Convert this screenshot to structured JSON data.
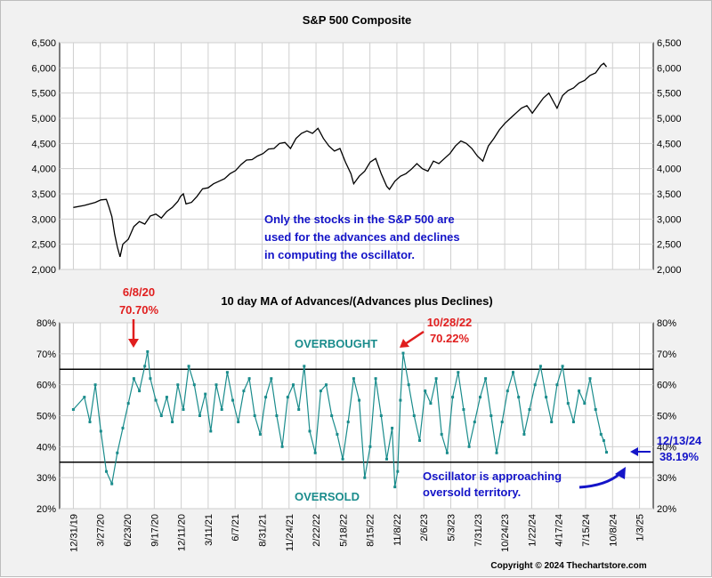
{
  "chart_data": [
    {
      "type": "line",
      "title": "S&P 500 Composite",
      "ylim": [
        2000,
        6500
      ],
      "y_ticks": [
        "2,000",
        "2,500",
        "3,000",
        "3,500",
        "4,000",
        "4,500",
        "5,000",
        "5,500",
        "6,000",
        "6,500"
      ],
      "y_tick_values": [
        2000,
        2500,
        3000,
        3500,
        4000,
        4500,
        5000,
        5500,
        6000,
        6500
      ],
      "grid": true,
      "series": [
        {
          "values": [
            [
              0,
              3230
            ],
            [
              4,
              3270
            ],
            [
              8,
              3330
            ],
            [
              10,
              3380
            ],
            [
              12,
              3390
            ],
            [
              13,
              3230
            ],
            [
              14,
              3050
            ],
            [
              15,
              2700
            ],
            [
              16,
              2450
            ],
            [
              17,
              2250
            ],
            [
              18,
              2500
            ],
            [
              20,
              2600
            ],
            [
              22,
              2850
            ],
            [
              24,
              2950
            ],
            [
              26,
              2900
            ],
            [
              28,
              3060
            ],
            [
              30,
              3100
            ],
            [
              32,
              3020
            ],
            [
              34,
              3150
            ],
            [
              36,
              3230
            ],
            [
              38,
              3350
            ],
            [
              39,
              3450
            ],
            [
              40,
              3500
            ],
            [
              41,
              3300
            ],
            [
              43,
              3330
            ],
            [
              45,
              3450
            ],
            [
              47,
              3600
            ],
            [
              49,
              3620
            ],
            [
              51,
              3700
            ],
            [
              53,
              3750
            ],
            [
              55,
              3800
            ],
            [
              57,
              3900
            ],
            [
              59,
              3960
            ],
            [
              61,
              4080
            ],
            [
              63,
              4170
            ],
            [
              65,
              4180
            ],
            [
              67,
              4250
            ],
            [
              69,
              4300
            ],
            [
              71,
              4390
            ],
            [
              73,
              4400
            ],
            [
              75,
              4500
            ],
            [
              77,
              4520
            ],
            [
              79,
              4400
            ],
            [
              81,
              4600
            ],
            [
              83,
              4700
            ],
            [
              85,
              4750
            ],
            [
              87,
              4700
            ],
            [
              89,
              4800
            ],
            [
              91,
              4600
            ],
            [
              93,
              4450
            ],
            [
              95,
              4350
            ],
            [
              97,
              4400
            ],
            [
              99,
              4130
            ],
            [
              101,
              3900
            ],
            [
              102,
              3700
            ],
            [
              104,
              3850
            ],
            [
              106,
              3950
            ],
            [
              108,
              4130
            ],
            [
              110,
              4200
            ],
            [
              112,
              3900
            ],
            [
              114,
              3650
            ],
            [
              115,
              3590
            ],
            [
              117,
              3750
            ],
            [
              119,
              3850
            ],
            [
              121,
              3900
            ],
            [
              123,
              3990
            ],
            [
              125,
              4100
            ],
            [
              127,
              4000
            ],
            [
              129,
              3950
            ],
            [
              131,
              4150
            ],
            [
              133,
              4100
            ],
            [
              135,
              4200
            ],
            [
              137,
              4300
            ],
            [
              139,
              4450
            ],
            [
              141,
              4550
            ],
            [
              143,
              4500
            ],
            [
              145,
              4400
            ],
            [
              147,
              4250
            ],
            [
              149,
              4150
            ],
            [
              151,
              4450
            ],
            [
              153,
              4600
            ],
            [
              155,
              4770
            ],
            [
              157,
              4900
            ],
            [
              159,
              5000
            ],
            [
              161,
              5100
            ],
            [
              163,
              5200
            ],
            [
              165,
              5250
            ],
            [
              167,
              5100
            ],
            [
              169,
              5250
            ],
            [
              171,
              5400
            ],
            [
              173,
              5500
            ],
            [
              175,
              5300
            ],
            [
              176,
              5200
            ],
            [
              178,
              5450
            ],
            [
              180,
              5550
            ],
            [
              182,
              5600
            ],
            [
              184,
              5700
            ],
            [
              186,
              5750
            ],
            [
              188,
              5850
            ],
            [
              190,
              5900
            ],
            [
              192,
              6050
            ],
            [
              193,
              6090
            ],
            [
              194,
              6020
            ]
          ]
        }
      ]
    },
    {
      "type": "line",
      "title": "10 day MA of Advances/(Advances plus Declines)",
      "ylim": [
        20,
        80
      ],
      "y_ticks": [
        "20%",
        "30%",
        "40%",
        "50%",
        "60%",
        "70%",
        "80%"
      ],
      "y_tick_values": [
        20,
        30,
        40,
        50,
        60,
        70,
        80
      ],
      "grid": true,
      "x_tick_labels": [
        "12/31/19",
        "3/27/20",
        "6/23/20",
        "9/17/20",
        "12/11/20",
        "3/11/21",
        "6/7/21",
        "8/31/21",
        "11/24/21",
        "2/22/22",
        "5/18/22",
        "8/15/22",
        "11/8/22",
        "2/6/23",
        "5/3/23",
        "7/31/23",
        "10/24/23",
        "1/22/24",
        "4/17/24",
        "7/15/24",
        "10/8/24",
        "1/3/25"
      ],
      "reference_lines": [
        {
          "value": 65,
          "label": "OVERBOUGHT"
        },
        {
          "value": 35,
          "label": "OVERSOLD"
        }
      ],
      "series": [
        {
          "values": [
            [
              0,
              52
            ],
            [
              4,
              56
            ],
            [
              6,
              48
            ],
            [
              8,
              60
            ],
            [
              10,
              45
            ],
            [
              12,
              32
            ],
            [
              14,
              28
            ],
            [
              16,
              38
            ],
            [
              18,
              46
            ],
            [
              20,
              54
            ],
            [
              22,
              62
            ],
            [
              24,
              58
            ],
            [
              26,
              66
            ],
            [
              27,
              70.7
            ],
            [
              28,
              62
            ],
            [
              30,
              55
            ],
            [
              32,
              50
            ],
            [
              34,
              56
            ],
            [
              36,
              48
            ],
            [
              38,
              60
            ],
            [
              40,
              52
            ],
            [
              42,
              66
            ],
            [
              44,
              60
            ],
            [
              46,
              50
            ],
            [
              48,
              57
            ],
            [
              50,
              45
            ],
            [
              52,
              60
            ],
            [
              54,
              52
            ],
            [
              56,
              64
            ],
            [
              58,
              55
            ],
            [
              60,
              48
            ],
            [
              62,
              58
            ],
            [
              64,
              62
            ],
            [
              66,
              50
            ],
            [
              68,
              44
            ],
            [
              70,
              56
            ],
            [
              72,
              62
            ],
            [
              74,
              50
            ],
            [
              76,
              40
            ],
            [
              78,
              56
            ],
            [
              80,
              60
            ],
            [
              82,
              52
            ],
            [
              84,
              66
            ],
            [
              86,
              45
            ],
            [
              88,
              38
            ],
            [
              90,
              58
            ],
            [
              92,
              60
            ],
            [
              94,
              50
            ],
            [
              96,
              44
            ],
            [
              98,
              36
            ],
            [
              100,
              48
            ],
            [
              102,
              62
            ],
            [
              104,
              55
            ],
            [
              106,
              30
            ],
            [
              108,
              40
            ],
            [
              110,
              62
            ],
            [
              112,
              50
            ],
            [
              114,
              36
            ],
            [
              116,
              46
            ],
            [
              117,
              27
            ],
            [
              118,
              32
            ],
            [
              119,
              55
            ],
            [
              120,
              70.2
            ],
            [
              122,
              60
            ],
            [
              124,
              50
            ],
            [
              126,
              42
            ],
            [
              128,
              58
            ],
            [
              130,
              54
            ],
            [
              132,
              62
            ],
            [
              134,
              44
            ],
            [
              136,
              38
            ],
            [
              138,
              56
            ],
            [
              140,
              64
            ],
            [
              142,
              52
            ],
            [
              144,
              40
            ],
            [
              146,
              48
            ],
            [
              148,
              56
            ],
            [
              150,
              62
            ],
            [
              152,
              50
            ],
            [
              154,
              38
            ],
            [
              156,
              48
            ],
            [
              158,
              58
            ],
            [
              160,
              64
            ],
            [
              162,
              56
            ],
            [
              164,
              44
            ],
            [
              166,
              52
            ],
            [
              168,
              60
            ],
            [
              170,
              66
            ],
            [
              172,
              56
            ],
            [
              174,
              48
            ],
            [
              176,
              60
            ],
            [
              178,
              66
            ],
            [
              180,
              54
            ],
            [
              182,
              48
            ],
            [
              184,
              58
            ],
            [
              186,
              54
            ],
            [
              188,
              62
            ],
            [
              190,
              52
            ],
            [
              192,
              44
            ],
            [
              193,
              42
            ],
            [
              194,
              38.19
            ]
          ]
        }
      ]
    }
  ],
  "annotations": {
    "top_note": [
      "Only the stocks in the S&P 500 are",
      "used for the advances and declines",
      "in computing the oscillator."
    ],
    "peak1_date": "6/8/20",
    "peak1_value": "70.70%",
    "peak2_date": "10/28/22",
    "peak2_value": "70.22%",
    "overbought": "OVERBOUGHT",
    "oversold": "OVERSOLD",
    "last_date": "12/13/24",
    "last_value": "38.19%",
    "oscillator_note": [
      "Oscillator is approaching",
      "oversold territory."
    ],
    "copyright": "Copyright © 2024 Thechartstore.com"
  },
  "colors": {
    "index_line": "#000000",
    "oscillator": "#1a8c8c",
    "annotation_blue": "#1414c8",
    "annotation_red": "#e01e1e",
    "grid": "#cfcfcf"
  }
}
